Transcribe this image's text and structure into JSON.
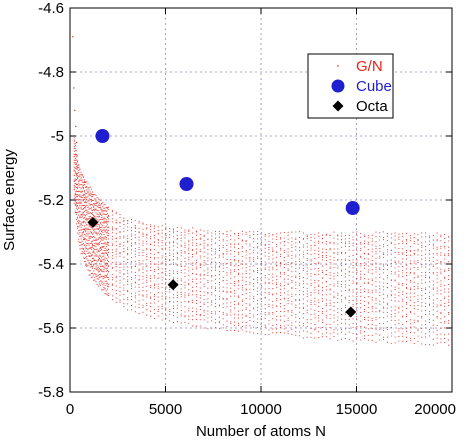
{
  "chart_data": {
    "type": "scatter",
    "xlabel": "Number of atoms  N",
    "ylabel": "Surface energy",
    "xlim": [
      0,
      20000
    ],
    "ylim": [
      -5.8,
      -4.6
    ],
    "x_ticks": [
      0,
      5000,
      10000,
      15000,
      20000
    ],
    "x_tick_labels": [
      "0",
      "5000",
      "10000",
      "15000",
      "20000"
    ],
    "y_ticks": [
      -5.8,
      -5.6,
      -5.4,
      -5.2,
      -5.0,
      -4.8,
      -4.6
    ],
    "y_tick_labels": [
      "-5.8",
      "-5.6",
      "-5.4",
      "-5.2",
      "-5",
      "-4.8",
      "-4.6"
    ],
    "grid": true,
    "legend_position": "top-right",
    "series": [
      {
        "name": "G/N",
        "color": "#e8241c",
        "marker": "dot",
        "envelope_upper": [
          [
            200,
            -5.0
          ],
          [
            500,
            -5.1
          ],
          [
            1000,
            -5.16
          ],
          [
            1500,
            -5.2
          ],
          [
            2000,
            -5.225
          ],
          [
            3000,
            -5.26
          ],
          [
            5000,
            -5.285
          ],
          [
            8000,
            -5.3
          ],
          [
            12000,
            -5.305
          ],
          [
            16000,
            -5.305
          ],
          [
            20000,
            -5.31
          ]
        ],
        "envelope_lower": [
          [
            200,
            -5.2
          ],
          [
            500,
            -5.35
          ],
          [
            1000,
            -5.43
          ],
          [
            2000,
            -5.5
          ],
          [
            3000,
            -5.54
          ],
          [
            5000,
            -5.575
          ],
          [
            8000,
            -5.605
          ],
          [
            12000,
            -5.625
          ],
          [
            16000,
            -5.64
          ],
          [
            20000,
            -5.65
          ]
        ]
      },
      {
        "name": "Cube",
        "color": "#1f1fd0",
        "marker": "circle",
        "points": [
          [
            1700,
            -5.0
          ],
          [
            6100,
            -5.15
          ],
          [
            14800,
            -5.225
          ]
        ]
      },
      {
        "name": "Octa",
        "color": "#000000",
        "marker": "diamond",
        "points": [
          [
            1200,
            -5.27
          ],
          [
            5400,
            -5.465
          ],
          [
            14700,
            -5.55
          ]
        ]
      }
    ]
  }
}
